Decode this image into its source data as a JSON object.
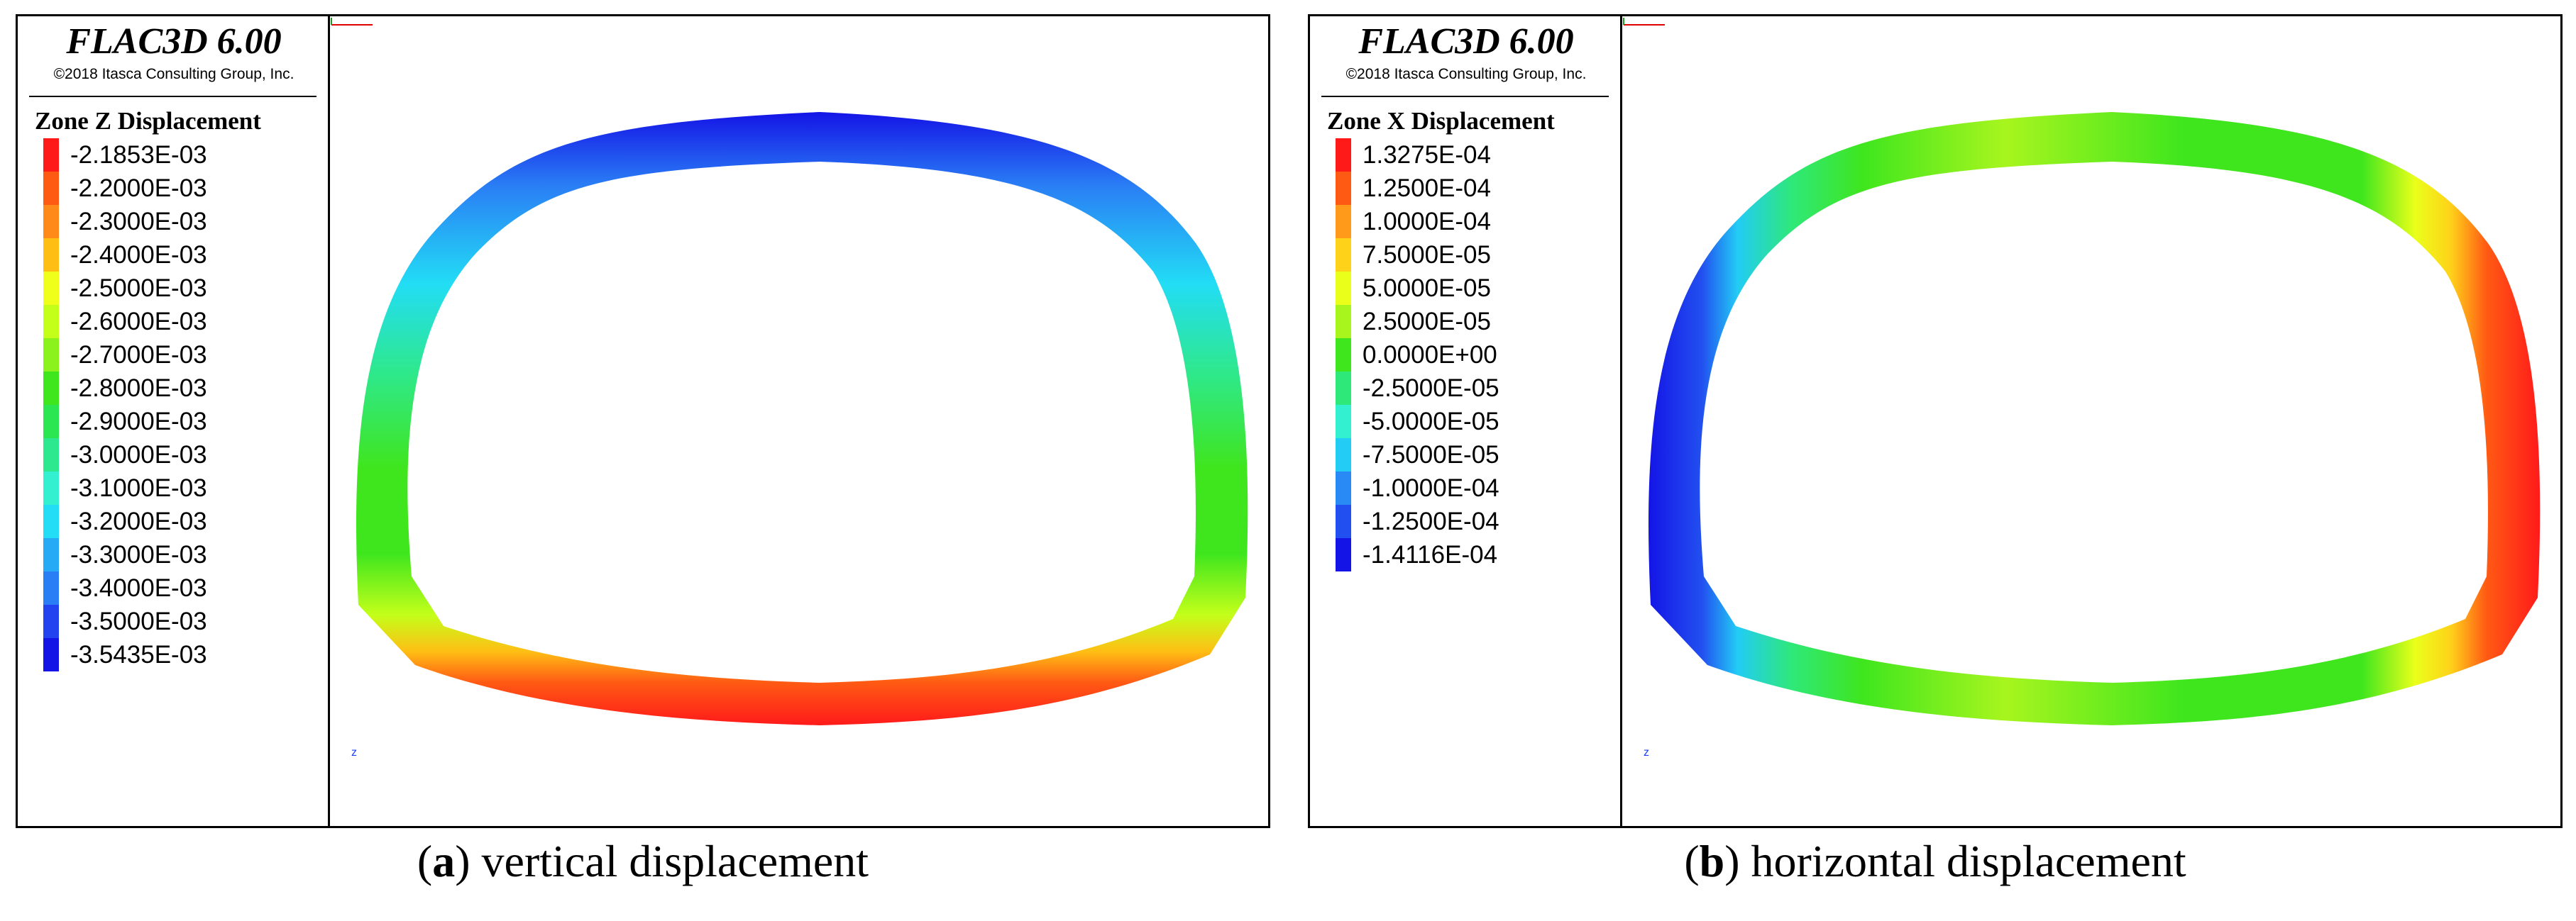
{
  "software": "FLAC3D 6.00",
  "copyright": "©2018 Itasca Consulting Group, Inc.",
  "panels": [
    {
      "id": "a",
      "legend_title": "Zone Z Displacement",
      "entries": [
        {
          "label": "-2.1853E-03",
          "color": "#ff1a1a"
        },
        {
          "label": "-2.2000E-03",
          "color": "#ff5a14"
        },
        {
          "label": "-2.3000E-03",
          "color": "#ff8a1a"
        },
        {
          "label": "-2.4000E-03",
          "color": "#ffbe14"
        },
        {
          "label": "-2.5000E-03",
          "color": "#f0ff1a"
        },
        {
          "label": "-2.6000E-03",
          "color": "#c4ff1a"
        },
        {
          "label": "-2.7000E-03",
          "color": "#8cf21e"
        },
        {
          "label": "-2.8000E-03",
          "color": "#3fe61e"
        },
        {
          "label": "-2.9000E-03",
          "color": "#2be650"
        },
        {
          "label": "-3.0000E-03",
          "color": "#2ee890"
        },
        {
          "label": "-3.1000E-03",
          "color": "#33f0d0"
        },
        {
          "label": "-3.2000E-03",
          "color": "#22ddf5"
        },
        {
          "label": "-3.3000E-03",
          "color": "#27aaf5"
        },
        {
          "label": "-3.4000E-03",
          "color": "#2a7ef5"
        },
        {
          "label": "-3.5000E-03",
          "color": "#2244f0"
        },
        {
          "label": "-3.5435E-03",
          "color": "#1414e6"
        }
      ],
      "caption_letter": "a",
      "caption_text": " vertical displacement"
    },
    {
      "id": "b",
      "legend_title": "Zone X Displacement",
      "entries": [
        {
          "label": "1.3275E-04",
          "color": "#ff1a1a"
        },
        {
          "label": "1.2500E-04",
          "color": "#ff5a14"
        },
        {
          "label": "1.0000E-04",
          "color": "#ff9a1a"
        },
        {
          "label": "7.5000E-05",
          "color": "#ffd21a"
        },
        {
          "label": "5.0000E-05",
          "color": "#eaff1a"
        },
        {
          "label": "2.5000E-05",
          "color": "#a8f51e"
        },
        {
          "label": "0.0000E+00",
          "color": "#3fe61e"
        },
        {
          "label": "-2.5000E-05",
          "color": "#2ee87a"
        },
        {
          "label": "-5.0000E-05",
          "color": "#33f0d0"
        },
        {
          "label": "-7.5000E-05",
          "color": "#22ccf5"
        },
        {
          "label": "-1.0000E-04",
          "color": "#2a8af5"
        },
        {
          "label": "-1.2500E-04",
          "color": "#2250f0"
        },
        {
          "label": "-1.4116E-04",
          "color": "#1414e6"
        }
      ],
      "caption_letter": "b",
      "caption_text": " horizontal displacement"
    }
  ]
}
